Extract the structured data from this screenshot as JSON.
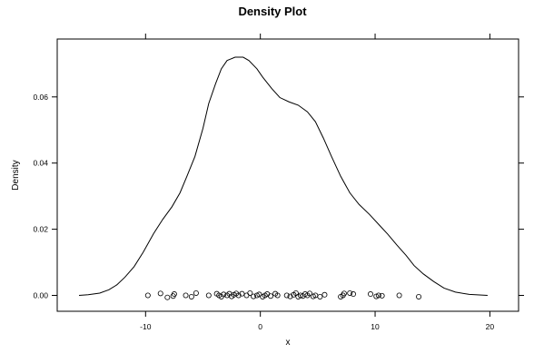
{
  "chart_data": {
    "type": "line",
    "title": "Density Plot",
    "xlabel": "x",
    "ylabel": "Density",
    "xlim": [
      -17.7,
      22.5
    ],
    "ylim": [
      -0.0048,
      0.0775
    ],
    "x_ticks": [
      -10,
      0,
      10,
      20
    ],
    "x_tick_labels": [
      "-10",
      "0",
      "10",
      "20"
    ],
    "y_ticks": [
      0.0,
      0.02,
      0.04,
      0.06
    ],
    "y_tick_labels": [
      "0.00",
      "0.02",
      "0.04",
      "0.06"
    ],
    "grid": false,
    "series": [
      {
        "kind": "density",
        "x": [
          -15.8,
          -15.0,
          -14.0,
          -13.2,
          -12.5,
          -11.8,
          -11.0,
          -10.2,
          -9.3,
          -8.5,
          -7.7,
          -7.0,
          -6.4,
          -5.7,
          -5.0,
          -4.5,
          -3.9,
          -3.4,
          -2.9,
          -2.2,
          -1.5,
          -1.0,
          -0.3,
          0.2,
          1.0,
          1.7,
          2.5,
          3.3,
          4.1,
          4.8,
          5.5,
          6.2,
          7.0,
          7.8,
          8.6,
          9.5,
          10.3,
          11.1,
          11.9,
          12.7,
          13.4,
          14.2,
          15.1,
          16.0,
          17.0,
          18.2,
          19.8
        ],
        "y": [
          0.0,
          0.0002,
          0.0007,
          0.0017,
          0.0032,
          0.0055,
          0.0087,
          0.0131,
          0.0187,
          0.023,
          0.0268,
          0.031,
          0.036,
          0.042,
          0.0505,
          0.058,
          0.064,
          0.0685,
          0.071,
          0.072,
          0.072,
          0.071,
          0.0685,
          0.066,
          0.0625,
          0.0598,
          0.0585,
          0.0575,
          0.0555,
          0.0525,
          0.0475,
          0.042,
          0.036,
          0.031,
          0.0275,
          0.0245,
          0.0215,
          0.0185,
          0.0152,
          0.0121,
          0.009,
          0.0065,
          0.0042,
          0.0022,
          0.001,
          0.0003,
          0.0
        ]
      },
      {
        "kind": "rug",
        "points": [
          [
            -9.8,
            0.0
          ],
          [
            -8.7,
            0.0006
          ],
          [
            -8.1,
            -0.0006
          ],
          [
            -7.6,
            -0.0002
          ],
          [
            -7.5,
            0.0004
          ],
          [
            -6.5,
            0.0
          ],
          [
            -6.0,
            -0.0004
          ],
          [
            -5.6,
            0.0007
          ],
          [
            -4.5,
            0.0
          ],
          [
            -3.8,
            0.0005
          ],
          [
            -3.6,
            0.0
          ],
          [
            -3.4,
            -0.0004
          ],
          [
            -3.2,
            0.0003
          ],
          [
            -2.9,
            0.0
          ],
          [
            -2.7,
            0.0005
          ],
          [
            -2.5,
            -0.0003
          ],
          [
            -2.3,
            0.0002
          ],
          [
            -2.1,
            0.0006
          ],
          [
            -1.9,
            0.0
          ],
          [
            -1.6,
            0.0005
          ],
          [
            -1.2,
            0.0
          ],
          [
            -0.9,
            0.0007
          ],
          [
            -0.6,
            -0.0003
          ],
          [
            -0.3,
            0.0
          ],
          [
            -0.1,
            0.0003
          ],
          [
            0.2,
            -0.0004
          ],
          [
            0.4,
            0.0
          ],
          [
            0.6,
            0.0004
          ],
          [
            0.9,
            -0.0002
          ],
          [
            1.3,
            0.0005
          ],
          [
            1.5,
            0.0
          ],
          [
            2.3,
            0.0
          ],
          [
            2.6,
            -0.0003
          ],
          [
            2.9,
            0.0002
          ],
          [
            3.1,
            0.0007
          ],
          [
            3.3,
            -0.0004
          ],
          [
            3.5,
            0.0
          ],
          [
            3.7,
            -0.0002
          ],
          [
            3.9,
            0.0004
          ],
          [
            4.1,
            0.0
          ],
          [
            4.3,
            0.0006
          ],
          [
            4.6,
            -0.0003
          ],
          [
            4.8,
            0.0
          ],
          [
            5.2,
            -0.0004
          ],
          [
            5.6,
            0.0002
          ],
          [
            7.0,
            -0.0004
          ],
          [
            7.2,
            0.0
          ],
          [
            7.3,
            0.0006
          ],
          [
            7.8,
            0.0007
          ],
          [
            8.1,
            0.0004
          ],
          [
            9.6,
            0.0004
          ],
          [
            10.1,
            -0.0003
          ],
          [
            10.3,
            0.0
          ],
          [
            10.6,
            -0.0001
          ],
          [
            12.1,
            0.0
          ],
          [
            13.8,
            -0.0004
          ]
        ]
      }
    ]
  }
}
